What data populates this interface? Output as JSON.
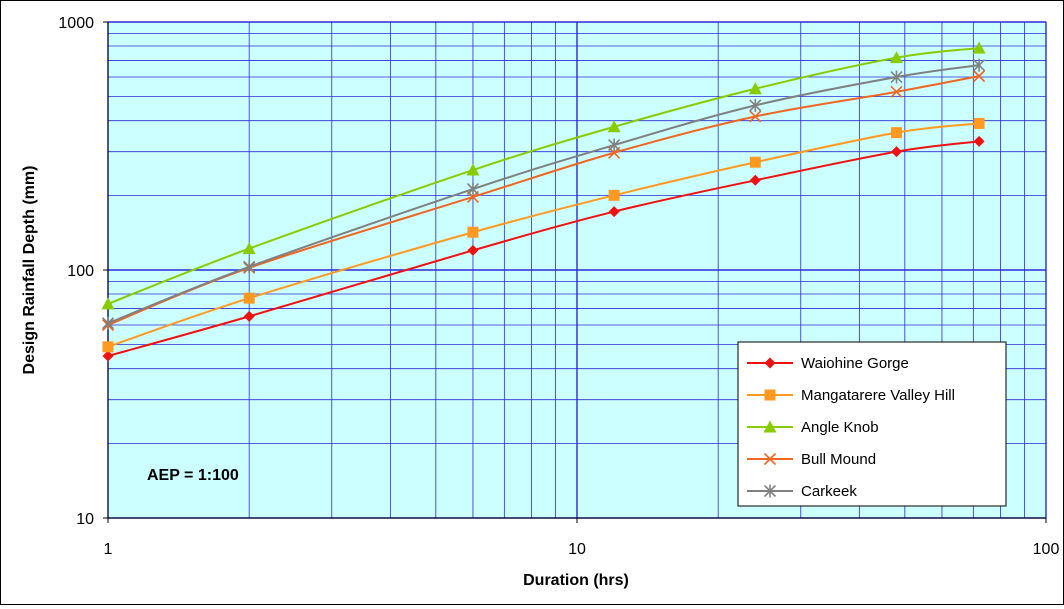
{
  "chart_data": {
    "type": "line",
    "xscale": "log",
    "yscale": "log",
    "xlim": [
      1,
      100
    ],
    "ylim": [
      10,
      1000
    ],
    "xlabel": "Duration (hrs)",
    "ylabel": "Design Rainfall Depth (mm)",
    "x_ticks": [
      "1",
      "10",
      "100"
    ],
    "y_ticks": [
      "10",
      "100",
      "1000"
    ],
    "annotation": "AEP = 1:100",
    "grid": true,
    "legend_position": "bottom-right",
    "plot_background": "#ccffff",
    "grid_color": "#2b2bd6",
    "x": [
      1,
      2,
      6,
      12,
      24,
      48,
      72
    ],
    "series": [
      {
        "name": "Waiohine Gorge",
        "color": "#ee1111",
        "marker": "diamond",
        "values": [
          45,
          65,
          120,
          172,
          230,
          300,
          330
        ]
      },
      {
        "name": "Mangatarere Valley Hill",
        "color": "#ff9922",
        "marker": "square",
        "values": [
          49,
          77,
          142,
          200,
          272,
          358,
          390
        ]
      },
      {
        "name": "Angle Knob",
        "color": "#88cc00",
        "marker": "triangle",
        "values": [
          73,
          122,
          253,
          378,
          538,
          718,
          785
        ]
      },
      {
        "name": "Bull Mound",
        "color": "#ee6622",
        "marker": "x",
        "values": [
          60,
          102,
          197,
          297,
          416,
          523,
          605
        ]
      },
      {
        "name": "Carkeek",
        "color": "#808080",
        "marker": "star",
        "values": [
          61,
          103,
          212,
          319,
          461,
          600,
          670
        ]
      }
    ]
  }
}
